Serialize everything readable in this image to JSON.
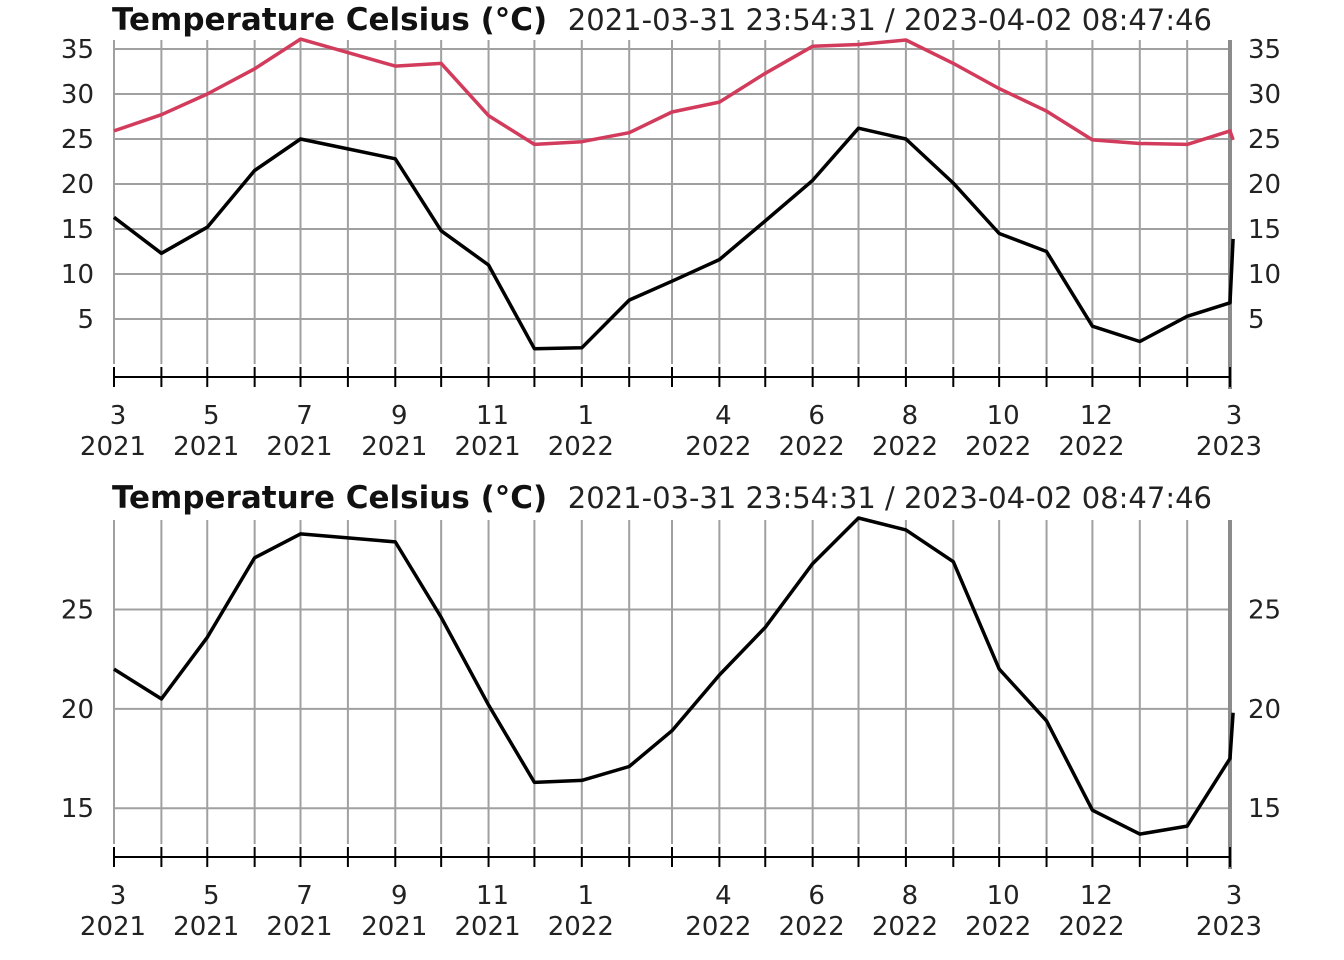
{
  "chart_data": [
    {
      "type": "line",
      "title": "Temperature Celsius (°C)",
      "subtitle": "2021-03-31 23:54:31 / 2023-04-02 08:47:46",
      "ylim": [
        0,
        36
      ],
      "yticks": [
        5,
        10,
        15,
        20,
        25,
        30,
        35
      ],
      "grid": true,
      "x_tick_labels": [
        {
          "date": "2021-03-01",
          "month": "3",
          "year": "2021"
        },
        {
          "date": "2021-05-01",
          "month": "5",
          "year": "2021"
        },
        {
          "date": "2021-07-01",
          "month": "7",
          "year": "2021"
        },
        {
          "date": "2021-09-01",
          "month": "9",
          "year": "2021"
        },
        {
          "date": "2021-11-01",
          "month": "11",
          "year": "2021"
        },
        {
          "date": "2022-01-01",
          "month": "1",
          "year": "2022"
        },
        {
          "date": "2022-04-01",
          "month": "4",
          "year": "2022"
        },
        {
          "date": "2022-06-01",
          "month": "6",
          "year": "2022"
        },
        {
          "date": "2022-08-01",
          "month": "8",
          "year": "2022"
        },
        {
          "date": "2022-10-01",
          "month": "10",
          "year": "2022"
        },
        {
          "date": "2022-12-01",
          "month": "12",
          "year": "2022"
        },
        {
          "date": "2023-03-01",
          "month": "3",
          "year": "2023"
        }
      ],
      "series": [
        {
          "color": "#d23b5c",
          "points": [
            {
              "x": "2021-03-01",
              "y": 25.9
            },
            {
              "x": "2021-04-01",
              "y": 27.7
            },
            {
              "x": "2021-05-01",
              "y": 30.0
            },
            {
              "x": "2021-06-01",
              "y": 32.8
            },
            {
              "x": "2021-07-01",
              "y": 36.1
            },
            {
              "x": "2021-08-01",
              "y": 34.6
            },
            {
              "x": "2021-09-01",
              "y": 33.1
            },
            {
              "x": "2021-10-01",
              "y": 33.4
            },
            {
              "x": "2021-11-01",
              "y": 27.6
            },
            {
              "x": "2021-12-01",
              "y": 24.4
            },
            {
              "x": "2022-01-01",
              "y": 24.7
            },
            {
              "x": "2022-02-01",
              "y": 25.7
            },
            {
              "x": "2022-03-01",
              "y": 28.0
            },
            {
              "x": "2022-04-01",
              "y": 29.1
            },
            {
              "x": "2022-05-01",
              "y": 32.3
            },
            {
              "x": "2022-06-01",
              "y": 35.3
            },
            {
              "x": "2022-07-01",
              "y": 35.5
            },
            {
              "x": "2022-08-01",
              "y": 36.0
            },
            {
              "x": "2022-09-01",
              "y": 33.4
            },
            {
              "x": "2022-10-01",
              "y": 30.6
            },
            {
              "x": "2022-11-01",
              "y": 28.1
            },
            {
              "x": "2022-12-01",
              "y": 24.9
            },
            {
              "x": "2023-01-01",
              "y": 24.5
            },
            {
              "x": "2023-02-01",
              "y": 24.4
            },
            {
              "x": "2023-03-01",
              "y": 25.9
            },
            {
              "x": "2023-03-03",
              "y": 24.9
            }
          ]
        },
        {
          "color": "#000000",
          "points": [
            {
              "x": "2021-03-01",
              "y": 16.3
            },
            {
              "x": "2021-04-01",
              "y": 12.3
            },
            {
              "x": "2021-05-01",
              "y": 15.2
            },
            {
              "x": "2021-06-01",
              "y": 21.5
            },
            {
              "x": "2021-07-01",
              "y": 25.0
            },
            {
              "x": "2021-08-01",
              "y": 23.9
            },
            {
              "x": "2021-09-01",
              "y": 22.8
            },
            {
              "x": "2021-10-01",
              "y": 14.8
            },
            {
              "x": "2021-11-01",
              "y": 11.0
            },
            {
              "x": "2021-12-01",
              "y": 1.7
            },
            {
              "x": "2022-01-01",
              "y": 1.8
            },
            {
              "x": "2022-02-01",
              "y": 7.1
            },
            {
              "x": "2022-03-01",
              "y": 9.2
            },
            {
              "x": "2022-04-01",
              "y": 11.6
            },
            {
              "x": "2022-05-01",
              "y": 15.9
            },
            {
              "x": "2022-06-01",
              "y": 20.4
            },
            {
              "x": "2022-07-01",
              "y": 26.2
            },
            {
              "x": "2022-08-01",
              "y": 25.0
            },
            {
              "x": "2022-09-01",
              "y": 20.1
            },
            {
              "x": "2022-10-01",
              "y": 14.5
            },
            {
              "x": "2022-11-01",
              "y": 12.5
            },
            {
              "x": "2022-12-01",
              "y": 4.2
            },
            {
              "x": "2023-01-01",
              "y": 2.5
            },
            {
              "x": "2023-02-01",
              "y": 5.3
            },
            {
              "x": "2023-03-01",
              "y": 6.8
            },
            {
              "x": "2023-03-03",
              "y": 13.9
            }
          ]
        }
      ]
    },
    {
      "type": "line",
      "title": "Temperature Celsius (°C)",
      "subtitle": "2021-03-31 23:54:31 / 2023-04-02 08:47:46",
      "ylim": [
        13.2,
        29.5
      ],
      "yticks": [
        15,
        20,
        25
      ],
      "grid": true,
      "x_tick_labels": [
        {
          "date": "2021-03-01",
          "month": "3",
          "year": "2021"
        },
        {
          "date": "2021-05-01",
          "month": "5",
          "year": "2021"
        },
        {
          "date": "2021-07-01",
          "month": "7",
          "year": "2021"
        },
        {
          "date": "2021-09-01",
          "month": "9",
          "year": "2021"
        },
        {
          "date": "2021-11-01",
          "month": "11",
          "year": "2021"
        },
        {
          "date": "2022-01-01",
          "month": "1",
          "year": "2022"
        },
        {
          "date": "2022-04-01",
          "month": "4",
          "year": "2022"
        },
        {
          "date": "2022-06-01",
          "month": "6",
          "year": "2022"
        },
        {
          "date": "2022-08-01",
          "month": "8",
          "year": "2022"
        },
        {
          "date": "2022-10-01",
          "month": "10",
          "year": "2022"
        },
        {
          "date": "2022-12-01",
          "month": "12",
          "year": "2022"
        },
        {
          "date": "2023-03-01",
          "month": "3",
          "year": "2023"
        }
      ],
      "series": [
        {
          "color": "#000000",
          "points": [
            {
              "x": "2021-03-01",
              "y": 22.0
            },
            {
              "x": "2021-04-01",
              "y": 20.5
            },
            {
              "x": "2021-05-01",
              "y": 23.6
            },
            {
              "x": "2021-06-01",
              "y": 27.6
            },
            {
              "x": "2021-07-01",
              "y": 28.8
            },
            {
              "x": "2021-08-01",
              "y": 28.6
            },
            {
              "x": "2021-09-01",
              "y": 28.4
            },
            {
              "x": "2021-10-01",
              "y": 24.6
            },
            {
              "x": "2021-11-01",
              "y": 20.2
            },
            {
              "x": "2021-12-01",
              "y": 16.3
            },
            {
              "x": "2022-01-01",
              "y": 16.4
            },
            {
              "x": "2022-02-01",
              "y": 17.1
            },
            {
              "x": "2022-03-01",
              "y": 18.9
            },
            {
              "x": "2022-04-01",
              "y": 21.7
            },
            {
              "x": "2022-05-01",
              "y": 24.1
            },
            {
              "x": "2022-06-01",
              "y": 27.3
            },
            {
              "x": "2022-07-01",
              "y": 29.6
            },
            {
              "x": "2022-08-01",
              "y": 29.0
            },
            {
              "x": "2022-09-01",
              "y": 27.4
            },
            {
              "x": "2022-10-01",
              "y": 22.0
            },
            {
              "x": "2022-11-01",
              "y": 19.4
            },
            {
              "x": "2022-12-01",
              "y": 14.9
            },
            {
              "x": "2023-01-01",
              "y": 13.7
            },
            {
              "x": "2023-02-01",
              "y": 14.1
            },
            {
              "x": "2023-03-01",
              "y": 17.5
            },
            {
              "x": "2023-03-03",
              "y": 19.8
            }
          ]
        }
      ]
    }
  ]
}
